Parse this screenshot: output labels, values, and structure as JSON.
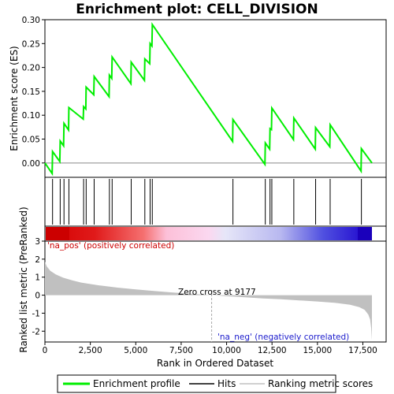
{
  "chart_data": {
    "type": "line",
    "title": "Enrichment plot: CELL_DIVISION",
    "top_panel": {
      "ylabel": "Enrichment score (ES)",
      "ylim": [
        -0.03,
        0.3
      ],
      "yticks": [
        0.0,
        0.05,
        0.1,
        0.15,
        0.2,
        0.25,
        0.3
      ],
      "ytick_labels": [
        "0.00",
        "0.05",
        "0.10",
        "0.15",
        "0.20",
        "0.25",
        "0.30"
      ],
      "es_profile": [
        [
          0,
          0.0
        ],
        [
          400,
          -0.022
        ],
        [
          420,
          0.024
        ],
        [
          820,
          0.003
        ],
        [
          840,
          0.046
        ],
        [
          1030,
          0.036
        ],
        [
          1050,
          0.083
        ],
        [
          1300,
          0.069
        ],
        [
          1320,
          0.116
        ],
        [
          2110,
          0.092
        ],
        [
          2130,
          0.118
        ],
        [
          2250,
          0.113
        ],
        [
          2270,
          0.159
        ],
        [
          2690,
          0.143
        ],
        [
          2710,
          0.181
        ],
        [
          3530,
          0.139
        ],
        [
          3550,
          0.184
        ],
        [
          3680,
          0.177
        ],
        [
          3700,
          0.222
        ],
        [
          4730,
          0.166
        ],
        [
          4750,
          0.211
        ],
        [
          5480,
          0.173
        ],
        [
          5500,
          0.218
        ],
        [
          5770,
          0.208
        ],
        [
          5790,
          0.25
        ],
        [
          5890,
          0.245
        ],
        [
          5910,
          0.29
        ],
        [
          10330,
          0.045
        ],
        [
          10350,
          0.091
        ],
        [
          12110,
          -0.003
        ],
        [
          12130,
          0.042
        ],
        [
          12370,
          0.029
        ],
        [
          12390,
          0.072
        ],
        [
          12470,
          0.07
        ],
        [
          12490,
          0.115
        ],
        [
          13680,
          0.049
        ],
        [
          13700,
          0.094
        ],
        [
          14880,
          0.029
        ],
        [
          14900,
          0.074
        ],
        [
          15680,
          0.034
        ],
        [
          15700,
          0.08
        ],
        [
          17400,
          -0.017
        ],
        [
          17420,
          0.03
        ],
        [
          18000,
          0.0
        ]
      ]
    },
    "hits": [
      420,
      840,
      1050,
      1320,
      2130,
      2270,
      2710,
      3550,
      3700,
      4750,
      5500,
      5790,
      5910,
      10350,
      12130,
      12390,
      12490,
      13700,
      14900,
      15700,
      17420
    ],
    "bottom_panel": {
      "ylabel": "Ranked list metric (PreRanked)",
      "ylim": [
        -2.6,
        3.0
      ],
      "yticks": [
        -2,
        -1,
        0,
        1,
        2,
        3
      ],
      "ytick_labels": [
        "-2",
        "-1",
        "0",
        "1",
        "2",
        "3"
      ],
      "metric_curve": [
        [
          0,
          1.85
        ],
        [
          100,
          1.6
        ],
        [
          300,
          1.35
        ],
        [
          600,
          1.15
        ],
        [
          1000,
          0.97
        ],
        [
          1500,
          0.82
        ],
        [
          2000,
          0.7
        ],
        [
          3000,
          0.54
        ],
        [
          4000,
          0.42
        ],
        [
          5000,
          0.32
        ],
        [
          6000,
          0.23
        ],
        [
          7000,
          0.15
        ],
        [
          8000,
          0.08
        ],
        [
          9177,
          0.0
        ],
        [
          10000,
          -0.06
        ],
        [
          11000,
          -0.12
        ],
        [
          12000,
          -0.18
        ],
        [
          13000,
          -0.23
        ],
        [
          14000,
          -0.29
        ],
        [
          15000,
          -0.35
        ],
        [
          16000,
          -0.43
        ],
        [
          16800,
          -0.53
        ],
        [
          17300,
          -0.66
        ],
        [
          17600,
          -0.82
        ],
        [
          17800,
          -1.08
        ],
        [
          17900,
          -1.35
        ],
        [
          17960,
          -1.85
        ],
        [
          18000,
          -2.5
        ]
      ],
      "zero_cross": 9177,
      "zero_cross_label": "Zero cross at 9177",
      "pos_label": "'na_pos' (positively correlated)",
      "neg_label": "'na_neg' (negatively correlated)"
    },
    "xlabel": "Rank in Ordered Dataset",
    "xlim": [
      0,
      18000
    ],
    "xticks": [
      0,
      2500,
      5000,
      7500,
      10000,
      12500,
      15000,
      17500
    ],
    "xtick_labels": [
      "0",
      "2,500",
      "5,000",
      "7,500",
      "10,000",
      "12,500",
      "15,000",
      "17,500"
    ],
    "legend": {
      "position": "bottom",
      "items": [
        {
          "label": "Enrichment profile",
          "color": "#00ee00"
        },
        {
          "label": "Hits",
          "color": "#000000"
        },
        {
          "label": "Ranking metric scores",
          "color": "#c0c0c0"
        }
      ]
    },
    "colors": {
      "profile": "#00ee00",
      "hits": "#000000",
      "metric_fill": "#c0c0c0",
      "pos_bar": "#d40000",
      "neg_bar": "#1a00cc"
    }
  }
}
